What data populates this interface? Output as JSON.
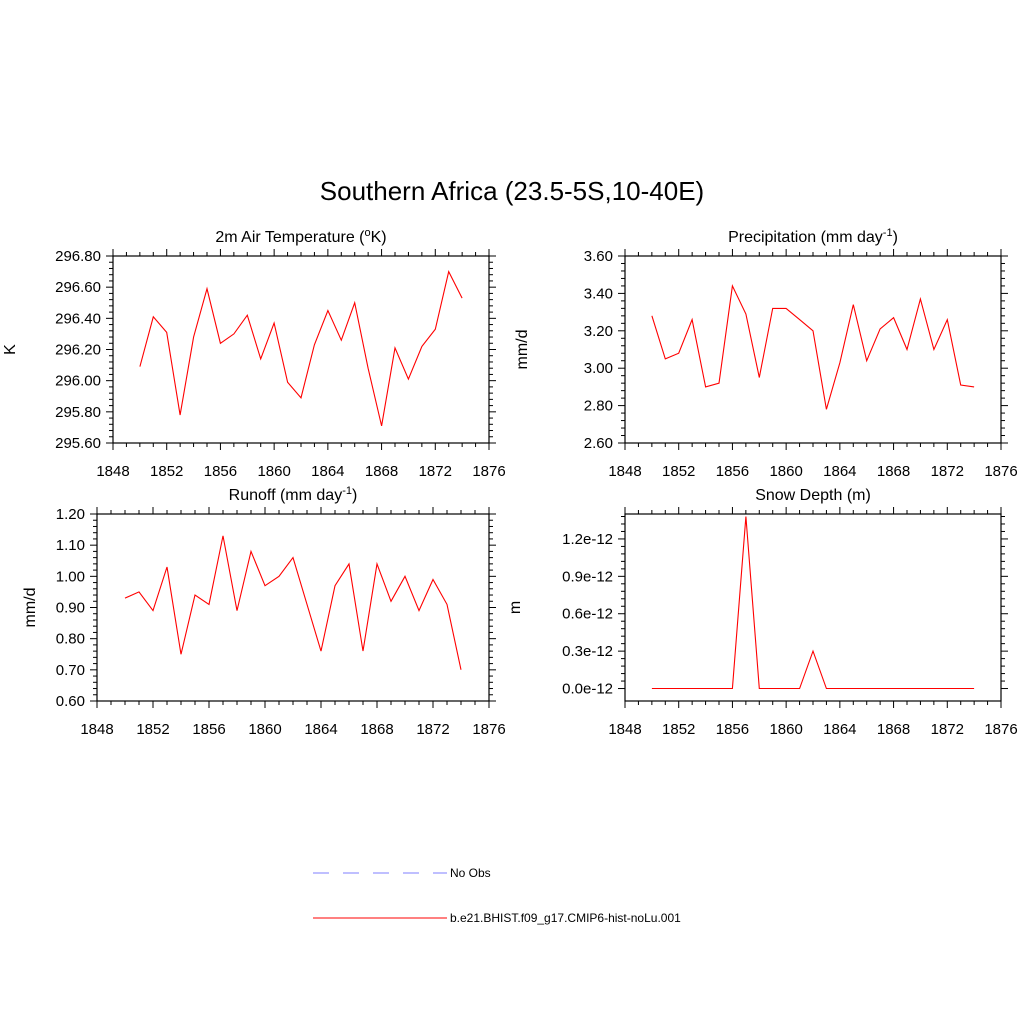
{
  "figure": {
    "title": "Southern Africa (23.5-5S,10-40E)"
  },
  "legend": {
    "entries": [
      {
        "label": "No Obs",
        "color": "#9999ff",
        "dashed": true
      },
      {
        "label": "b.e21.BHIST.f09_g17.CMIP6-hist-noLu.001",
        "color": "#ff0000",
        "dashed": false
      }
    ]
  },
  "chart_data": [
    {
      "type": "line",
      "title_main": "2m Air Temperature (",
      "title_sup": "o",
      "title_rest": "K)",
      "ylabel": "K",
      "xlim": [
        1848,
        1876
      ],
      "xticks": [
        "1848",
        "1852",
        "1856",
        "1860",
        "1864",
        "1868",
        "1872",
        "1876"
      ],
      "ylim": [
        295.6,
        296.8
      ],
      "yticks": [
        "295.60",
        "295.80",
        "296.00",
        "296.20",
        "296.40",
        "296.60",
        "296.80"
      ],
      "color": "#ff0000",
      "x": [
        1850,
        1851,
        1852,
        1853,
        1854,
        1855,
        1856,
        1857,
        1858,
        1859,
        1860,
        1861,
        1862,
        1863,
        1864,
        1865,
        1866,
        1867,
        1868,
        1869,
        1870,
        1871,
        1872,
        1873,
        1874
      ],
      "y": [
        296.09,
        296.41,
        296.31,
        295.78,
        296.28,
        296.59,
        296.24,
        296.3,
        296.42,
        296.14,
        296.37,
        295.99,
        295.89,
        296.23,
        296.45,
        296.26,
        296.5,
        296.08,
        295.71,
        296.21,
        296.01,
        296.22,
        296.33,
        296.7,
        296.53
      ]
    },
    {
      "type": "line",
      "title_main": "Precipitation (mm day",
      "title_sup": "-1",
      "title_rest": ")",
      "ylabel": "mm/d",
      "xlim": [
        1848,
        1876
      ],
      "xticks": [
        "1848",
        "1852",
        "1856",
        "1860",
        "1864",
        "1868",
        "1872",
        "1876"
      ],
      "ylim": [
        2.6,
        3.6
      ],
      "yticks": [
        "2.60",
        "2.80",
        "3.00",
        "3.20",
        "3.40",
        "3.60"
      ],
      "color": "#ff0000",
      "x": [
        1850,
        1851,
        1852,
        1853,
        1854,
        1855,
        1856,
        1857,
        1858,
        1859,
        1860,
        1861,
        1862,
        1863,
        1864,
        1865,
        1866,
        1867,
        1868,
        1869,
        1870,
        1871,
        1872,
        1873,
        1874
      ],
      "y": [
        3.28,
        3.05,
        3.08,
        3.26,
        2.9,
        2.92,
        3.44,
        3.29,
        2.95,
        3.32,
        3.32,
        3.26,
        3.2,
        2.78,
        3.03,
        3.34,
        3.04,
        3.21,
        3.27,
        3.1,
        3.37,
        3.1,
        3.26,
        2.91,
        2.9
      ]
    },
    {
      "type": "line",
      "title_main": "Runoff (mm day",
      "title_sup": "-1",
      "title_rest": ")",
      "ylabel": "mm/d",
      "xlim": [
        1848,
        1876
      ],
      "xticks": [
        "1848",
        "1852",
        "1856",
        "1860",
        "1864",
        "1868",
        "1872",
        "1876"
      ],
      "ylim": [
        0.6,
        1.2
      ],
      "yticks": [
        "0.60",
        "0.70",
        "0.80",
        "0.90",
        "1.00",
        "1.10",
        "1.20"
      ],
      "color": "#ff0000",
      "x": [
        1850,
        1851,
        1852,
        1853,
        1854,
        1855,
        1856,
        1857,
        1858,
        1859,
        1860,
        1861,
        1862,
        1863,
        1864,
        1865,
        1866,
        1867,
        1868,
        1869,
        1870,
        1871,
        1872,
        1873,
        1874
      ],
      "y": [
        0.93,
        0.95,
        0.89,
        1.03,
        0.75,
        0.94,
        0.91,
        1.13,
        0.89,
        1.08,
        0.97,
        1.0,
        1.06,
        0.91,
        0.76,
        0.97,
        1.04,
        0.76,
        1.04,
        0.92,
        1.0,
        0.89,
        0.99,
        0.91,
        0.7
      ]
    },
    {
      "type": "line",
      "title_main": "Snow Depth (m)",
      "title_sup": "",
      "title_rest": "",
      "ylabel": "m",
      "xlim": [
        1848,
        1876
      ],
      "xticks": [
        "1848",
        "1852",
        "1856",
        "1860",
        "1864",
        "1868",
        "1872",
        "1876"
      ],
      "ylim": [
        -1e-13,
        1.4e-12
      ],
      "yticks": [
        "0.0e-12",
        "0.3e-12",
        "0.6e-12",
        "0.9e-12",
        "1.2e-12"
      ],
      "ytick_values": [
        0,
        3e-13,
        6e-13,
        9e-13,
        1.2e-12
      ],
      "color": "#ff0000",
      "x": [
        1850,
        1851,
        1852,
        1853,
        1854,
        1855,
        1856,
        1857,
        1858,
        1859,
        1860,
        1861,
        1862,
        1863,
        1864,
        1865,
        1866,
        1867,
        1868,
        1869,
        1870,
        1871,
        1872,
        1873,
        1874
      ],
      "y": [
        0,
        0,
        0,
        0,
        0,
        0,
        0,
        1.38e-12,
        0,
        0,
        0,
        0,
        3e-13,
        0,
        0,
        0,
        0,
        0,
        0,
        0,
        0,
        0,
        0,
        0,
        0
      ]
    }
  ]
}
